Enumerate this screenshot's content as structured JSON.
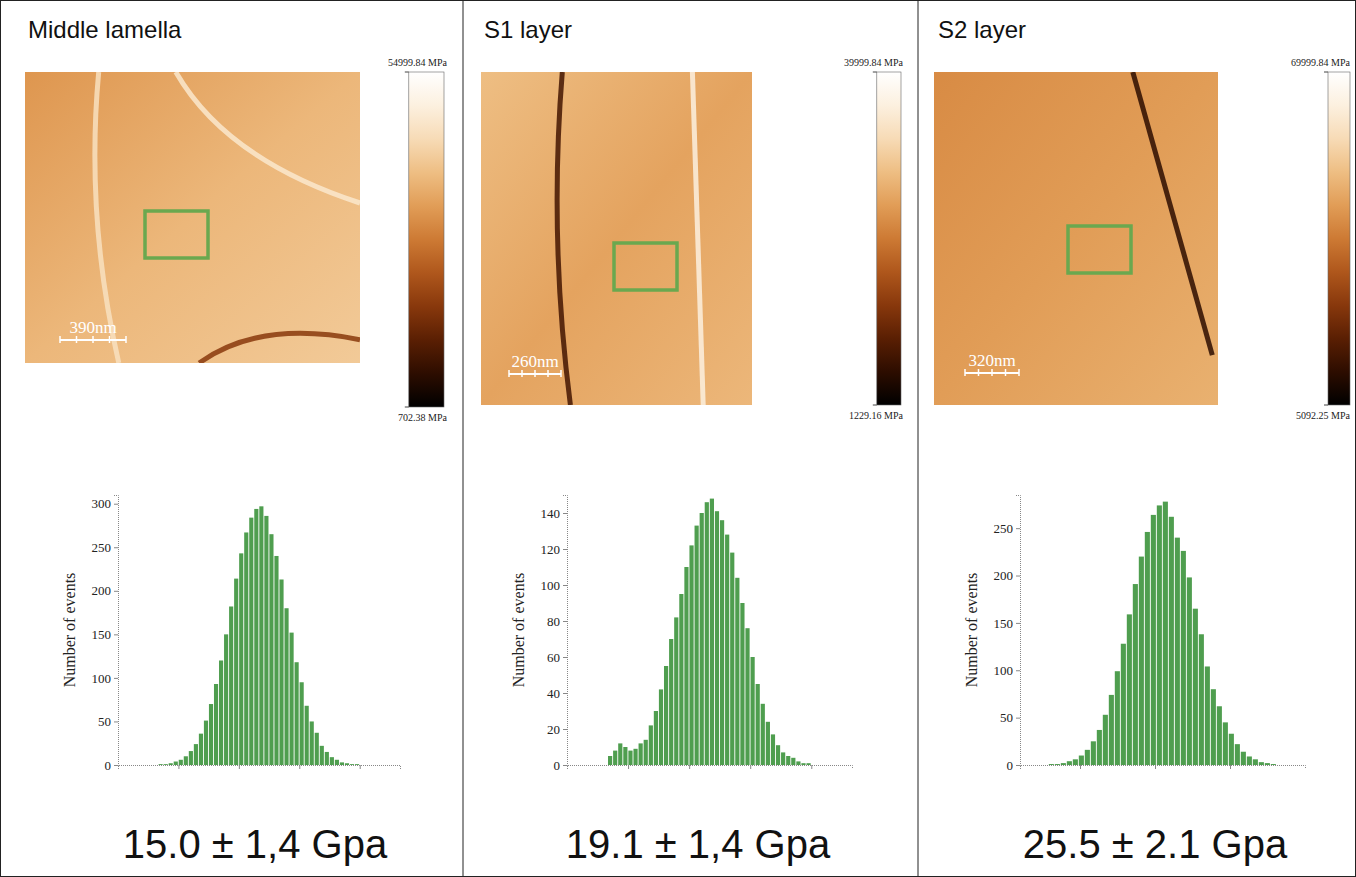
{
  "chart_data": [
    {
      "type": "histogram",
      "title": "Middle lamella",
      "y_label": "Number of events",
      "bins": [
        9,
        9.25,
        9.5,
        9.75,
        10,
        10.25,
        10.5,
        10.75,
        11,
        11.25,
        11.5,
        11.75,
        12,
        12.25,
        12.5,
        12.75,
        13,
        13.25,
        13.5,
        13.75,
        14,
        14.25,
        14.5,
        14.75,
        15,
        15.25,
        15.5,
        15.75,
        16,
        16.25,
        16.5,
        16.75,
        17,
        17.25,
        17.5,
        17.75,
        18,
        18.25,
        18.5,
        18.75,
        19,
        19.25,
        19.5,
        19.75,
        20,
        20.25,
        20.5,
        20.75,
        21
      ],
      "counts": [
        0,
        0,
        0,
        0,
        1,
        1,
        2,
        4,
        6,
        10,
        16,
        24,
        36,
        51,
        70,
        93,
        120,
        150,
        182,
        214,
        243,
        267,
        284,
        294,
        297,
        286,
        265,
        240,
        213,
        180,
        152,
        118,
        95,
        68,
        50,
        37,
        22,
        15,
        9,
        6,
        3,
        2,
        1,
        1,
        0,
        0,
        0,
        0
      ],
      "xlim": [
        8,
        22
      ],
      "xticks": [
        11,
        14,
        17,
        20
      ],
      "ylim": [
        0,
        310
      ],
      "yticks": [
        0,
        50,
        100,
        150,
        200,
        250,
        300
      ],
      "tick_labels": "y",
      "color": "#4f9e4f",
      "scale_bar": "390nm",
      "colorbar_range": [
        702.38,
        54999.84
      ],
      "colorbar_ticks": [
        {
          "value": 54999.84,
          "label": "54999.84 MPa"
        },
        {
          "value": 702.38,
          "label": "702.38 MPa"
        }
      ],
      "result": "15.0 ± 1,4 Gpa"
    },
    {
      "type": "histogram",
      "title": "S1 layer",
      "y_label": "Number of events",
      "bins": [
        13,
        13.25,
        13.5,
        13.75,
        14,
        14.25,
        14.5,
        14.75,
        15,
        15.25,
        15.5,
        15.75,
        16,
        16.25,
        16.5,
        16.75,
        17,
        17.25,
        17.5,
        17.75,
        18,
        18.25,
        18.5,
        18.75,
        19,
        19.25,
        19.5,
        19.75,
        20,
        20.25,
        20.5,
        20.75,
        21,
        21.25,
        21.5,
        21.75,
        22,
        22.25,
        22.5,
        22.75,
        23,
        23.25,
        23.5,
        23.75,
        24,
        24.25,
        24.5,
        24.75,
        25
      ],
      "counts": [
        0,
        0,
        0,
        0,
        5,
        8,
        12,
        10,
        8,
        9,
        12,
        14,
        22,
        30,
        42,
        55,
        70,
        82,
        95,
        110,
        122,
        133,
        140,
        146,
        148,
        141,
        136,
        128,
        118,
        104,
        90,
        76,
        60,
        45,
        34,
        24,
        17,
        11,
        7,
        5,
        4,
        2,
        1,
        1,
        0,
        0,
        0,
        0
      ],
      "xlim": [
        12,
        26
      ],
      "xticks": [
        15,
        18,
        21,
        24
      ],
      "ylim": [
        0,
        150
      ],
      "yticks": [
        0,
        20,
        40,
        60,
        80,
        100,
        120,
        140
      ],
      "tick_labels": "y",
      "color": "#4f9e4f",
      "scale_bar": "260nm",
      "colorbar_range": [
        1229.16,
        39999.84
      ],
      "colorbar_ticks": [
        {
          "value": 39999.84,
          "label": "39999.84 MPa"
        },
        {
          "value": 1229.16,
          "label": "1229.16 MPa"
        }
      ],
      "result": "19.1 ± 1,4 Gpa"
    },
    {
      "type": "histogram",
      "title": "S2 layer",
      "y_label": "Number of events",
      "bins": [
        17.5,
        17.9,
        18.3,
        18.7,
        19.1,
        19.5,
        19.9,
        20.3,
        20.7,
        21.1,
        21.5,
        21.9,
        22.3,
        22.7,
        23.1,
        23.5,
        23.9,
        24.3,
        24.7,
        25.1,
        25.5,
        25.9,
        26.3,
        26.7,
        27.1,
        27.5,
        27.9,
        28.3,
        28.7,
        29.1,
        29.5,
        29.9,
        30.3,
        30.7,
        31.1,
        31.5,
        31.9,
        32.3,
        32.7,
        33.1,
        33.5
      ],
      "counts": [
        0,
        1,
        1,
        2,
        4,
        6,
        10,
        16,
        25,
        37,
        53,
        74,
        99,
        128,
        159,
        191,
        220,
        246,
        264,
        274,
        278,
        262,
        240,
        226,
        198,
        165,
        138,
        104,
        80,
        62,
        45,
        33,
        22,
        14,
        9,
        6,
        3,
        2,
        1,
        0
      ],
      "xlim": [
        16,
        35
      ],
      "xticks": [
        20,
        25,
        30
      ],
      "ylim": [
        0,
        285
      ],
      "yticks": [
        0,
        50,
        100,
        150,
        200,
        250
      ],
      "tick_labels": "y",
      "color": "#4f9e4f",
      "scale_bar": "320nm",
      "colorbar_range": [
        5092.25,
        69999.84
      ],
      "colorbar_ticks": [
        {
          "value": 69999.84,
          "label": "69999.84 MPa"
        },
        {
          "value": 5092.25,
          "label": "5092.25 MPa"
        }
      ],
      "result": "25.5 ± 2.1 Gpa"
    }
  ]
}
